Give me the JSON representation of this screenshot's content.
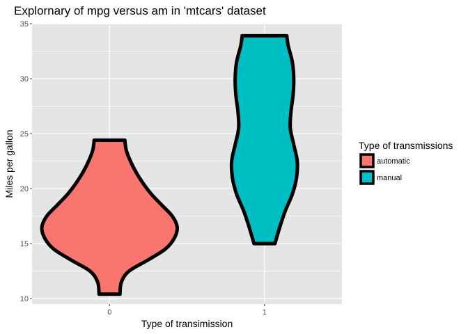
{
  "chart_data": {
    "type": "violin",
    "title": "Explornary of mpg versus am in 'mtcars' dataset",
    "xlabel": "Type of transimission",
    "ylabel": "Miles per gallon",
    "categories": [
      "0",
      "1"
    ],
    "ylim": [
      9.5,
      35
    ],
    "yticks": [
      "10",
      "15",
      "20",
      "25",
      "30",
      "35"
    ],
    "grid": true,
    "legend": {
      "title": "Type of transmissions",
      "position": "right",
      "entries": [
        {
          "label": "automatic",
          "color": "#F8766D"
        },
        {
          "label": "manual",
          "color": "#00BFC4"
        }
      ]
    },
    "series": [
      {
        "category": "0",
        "color": "#F8766D",
        "min": 10.4,
        "max": 24.4,
        "profile": [
          [
            10.4,
            0.15
          ],
          [
            11.5,
            0.17
          ],
          [
            12.5,
            0.28
          ],
          [
            13.5,
            0.55
          ],
          [
            14.5,
            0.8
          ],
          [
            15.5,
            0.93
          ],
          [
            16.5,
            0.97
          ],
          [
            17.5,
            0.9
          ],
          [
            18.5,
            0.75
          ],
          [
            19.5,
            0.6
          ],
          [
            20.5,
            0.48
          ],
          [
            21.5,
            0.38
          ],
          [
            22.5,
            0.3
          ],
          [
            23.5,
            0.24
          ],
          [
            24.4,
            0.22
          ]
        ]
      },
      {
        "category": "1",
        "color": "#00BFC4",
        "min": 15.0,
        "max": 33.9,
        "profile": [
          [
            15.0,
            0.15
          ],
          [
            16.5,
            0.22
          ],
          [
            18.0,
            0.3
          ],
          [
            19.5,
            0.4
          ],
          [
            21.0,
            0.46
          ],
          [
            22.5,
            0.47
          ],
          [
            24.0,
            0.42
          ],
          [
            25.5,
            0.37
          ],
          [
            27.0,
            0.38
          ],
          [
            28.5,
            0.41
          ],
          [
            30.0,
            0.42
          ],
          [
            31.5,
            0.4
          ],
          [
            33.0,
            0.34
          ],
          [
            33.9,
            0.32
          ]
        ]
      }
    ]
  },
  "colors": {
    "panel": "#E5E5E5",
    "grid_major": "#FFFFFF",
    "outline": "#000000"
  }
}
